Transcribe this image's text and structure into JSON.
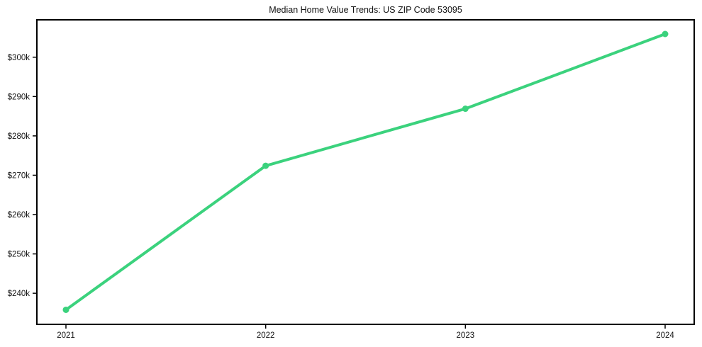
{
  "page": {
    "background_color": "#ffffff"
  },
  "chart_data": {
    "type": "line",
    "title": "Median Home Value Trends: US ZIP Code 53095",
    "xlabel": "",
    "ylabel": "",
    "grid": false,
    "legend": "none",
    "frame_color": "#000000",
    "text_color": "#111111",
    "x_labels": [
      "2021",
      "2022",
      "2023",
      "2024"
    ],
    "series": [
      {
        "name": "Median Home Value",
        "values": [
          235800,
          272400,
          286900,
          305900
        ],
        "color": "#3bd27d",
        "marker": "circle",
        "line_width": 4,
        "marker_radius": 4.5
      }
    ],
    "y_ticks": [
      {
        "value": 240000,
        "label": "$240k"
      },
      {
        "value": 250000,
        "label": "$250k"
      },
      {
        "value": 260000,
        "label": "$260k"
      },
      {
        "value": 270000,
        "label": "$270k"
      },
      {
        "value": 280000,
        "label": "$280k"
      },
      {
        "value": 290000,
        "label": "$290k"
      },
      {
        "value": 300000,
        "label": "$300k"
      }
    ],
    "ylim": [
      232100,
      309500
    ]
  }
}
